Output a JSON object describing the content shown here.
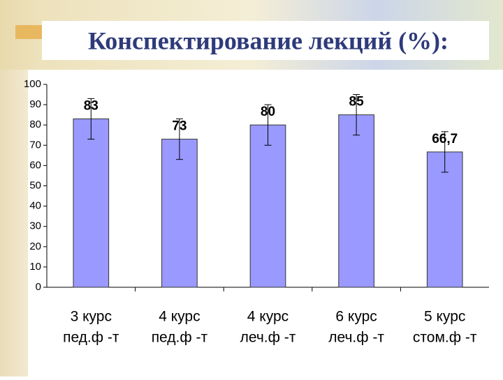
{
  "chart_data": {
    "type": "bar",
    "title": "Конспектирование лекций (%):",
    "categories": [
      [
        "3 курс",
        "пед.ф -т"
      ],
      [
        "4 курс",
        "пед.ф -т"
      ],
      [
        "4 курс",
        "леч.ф -т"
      ],
      [
        "6 курс",
        "леч.ф -т"
      ],
      [
        "5 курс",
        "стом.ф -т"
      ]
    ],
    "values": [
      83,
      73,
      80,
      85,
      66.7
    ],
    "value_labels": [
      "83",
      "73",
      "80",
      "85",
      "66,7"
    ],
    "errors": [
      10,
      10,
      10,
      10,
      10
    ],
    "color": "#9999ff",
    "ylim": [
      0,
      100
    ],
    "yticks": [
      0,
      10,
      20,
      30,
      40,
      50,
      60,
      70,
      80,
      90,
      100
    ],
    "grid": false
  }
}
